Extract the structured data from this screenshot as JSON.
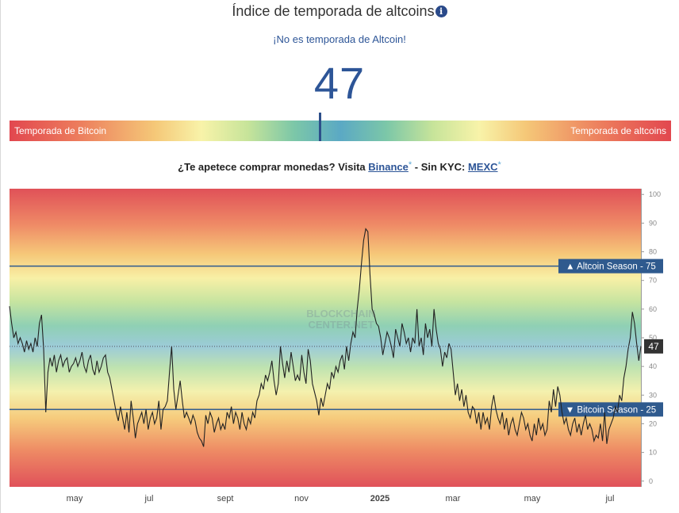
{
  "header": {
    "title": "Índice de temporada de altcoins",
    "info_icon": "info-icon",
    "subtitle": "¡No es temporada de Altcoin!",
    "index_value": "47"
  },
  "gauge": {
    "left_label": "Temporada de Bitcoin",
    "right_label": "Temporada de altcoins",
    "value": 47
  },
  "promo": {
    "prefix": "¿Te apetece comprar monedas? Visita",
    "binance": "Binance",
    "binance_mark": "*",
    "middle": "- Sin KYC:",
    "mexc": "MEXC",
    "mexc_mark": "*"
  },
  "chart_data": {
    "type": "line",
    "ylim": [
      -2,
      102
    ],
    "yticks": [
      0,
      10,
      20,
      30,
      40,
      50,
      60,
      70,
      80,
      90,
      100
    ],
    "xtick_labels": [
      "may",
      "jul",
      "sept",
      "nov",
      "2025",
      "mar",
      "may",
      "jul"
    ],
    "watermark": [
      "BLOCKCHAIN",
      "CENTER.NET"
    ],
    "current_value": 47,
    "reference_lines": [
      {
        "label": "▲ Altcoin Season - 75",
        "value": 75
      },
      {
        "label": "▼ Bitcoin Season - 25",
        "value": 25
      }
    ],
    "colors": {
      "line": "#222222",
      "reference": "#2f5a8e",
      "current": "#333333"
    },
    "values": [
      61,
      55,
      50,
      52,
      48,
      50,
      48,
      45,
      49,
      46,
      48,
      45,
      50,
      47,
      55,
      58,
      46,
      24,
      38,
      43,
      40,
      44,
      38,
      42,
      44,
      40,
      42,
      43,
      38,
      40,
      41,
      43,
      40,
      42,
      45,
      40,
      38,
      42,
      44,
      39,
      37,
      42,
      38,
      40,
      43,
      44,
      38,
      36,
      32,
      28,
      24,
      21,
      26,
      22,
      18,
      24,
      17,
      28,
      22,
      15,
      20,
      22,
      24,
      20,
      25,
      18,
      22,
      24,
      20,
      22,
      28,
      18,
      25,
      26,
      28,
      38,
      47,
      32,
      25,
      30,
      35,
      28,
      22,
      24,
      22,
      20,
      23,
      21,
      17,
      15,
      14,
      12,
      23,
      20,
      24,
      22,
      17,
      20,
      22,
      18,
      20,
      18,
      24,
      22,
      26,
      20,
      24,
      22,
      18,
      24,
      20,
      18,
      22,
      20,
      24,
      22,
      28,
      30,
      34,
      32,
      37,
      35,
      38,
      42,
      35,
      30,
      34,
      47,
      41,
      36,
      42,
      38,
      45,
      40,
      35,
      37,
      35,
      44,
      38,
      34,
      46,
      42,
      34,
      31,
      28,
      23,
      29,
      26,
      30,
      34,
      32,
      38,
      36,
      40,
      38,
      42,
      44,
      39,
      47,
      42,
      48,
      52,
      50,
      60,
      67,
      76,
      84,
      88,
      87,
      72,
      60,
      58,
      55,
      54,
      50,
      44,
      48,
      52,
      50,
      47,
      43,
      53,
      50,
      47,
      55,
      52,
      48,
      50,
      45,
      50,
      48,
      60,
      47,
      50,
      44,
      55,
      50,
      53,
      47,
      60,
      53,
      48,
      46,
      40,
      45,
      43,
      48,
      46,
      38,
      30,
      34,
      28,
      32,
      26,
      30,
      24,
      22,
      26,
      25,
      20,
      24,
      18,
      24,
      20,
      22,
      18,
      26,
      30,
      25,
      22,
      20,
      24,
      18,
      22,
      16,
      20,
      22,
      18,
      16,
      20,
      24,
      22,
      18,
      20,
      16,
      14,
      20,
      16,
      22,
      18,
      20,
      16,
      18,
      28,
      24,
      32,
      26,
      33,
      30,
      24,
      20,
      22,
      18,
      16,
      20,
      22,
      17,
      20,
      16,
      20,
      23,
      18,
      20,
      18,
      14,
      16,
      15,
      20,
      14,
      24,
      13,
      18,
      20,
      22,
      26,
      24,
      30,
      28,
      36,
      40,
      46,
      50,
      59,
      55,
      48,
      42,
      47
    ]
  }
}
